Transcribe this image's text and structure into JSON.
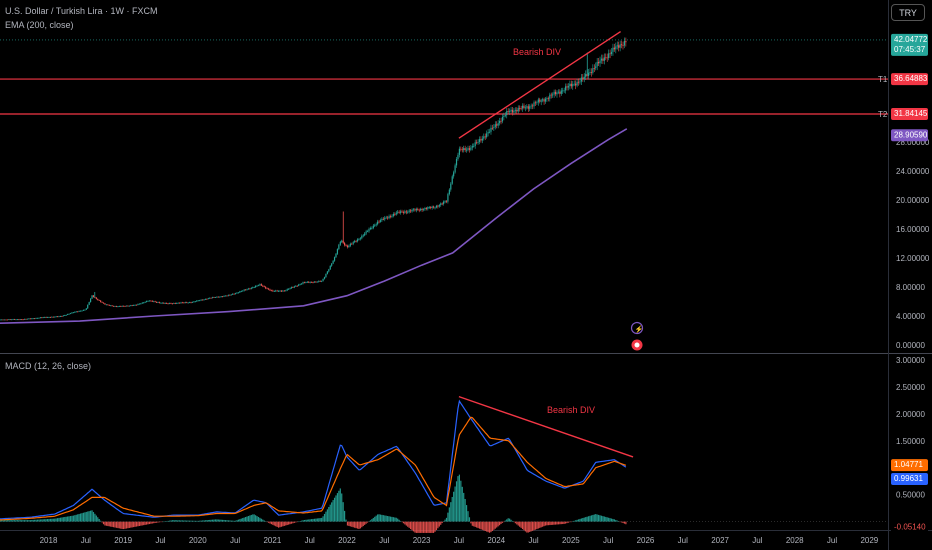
{
  "header": {
    "symbol_title": "U.S. Dollar / Turkish Lira · 1W · FXCM",
    "ema_label": "EMA (200, close)",
    "macd_label": "MACD (12, 26, close)",
    "currency_button": "TRY"
  },
  "colors": {
    "background": "#000000",
    "candle_up": "#26a69a",
    "candle_down": "#ef5350",
    "ema": "#7e57c2",
    "hline": "#f23645",
    "annotation": "#f23645",
    "macd_line": "#2962ff",
    "signal_line": "#ff6d00",
    "hist_pos": "#26a69a",
    "hist_neg": "#ef5350",
    "price_badge": "#26a69a"
  },
  "chart_data": [
    {
      "type": "candlestick",
      "title": "U.S. Dollar / Turkish Lira · 1W · FXCM",
      "y_scale": "linear",
      "ylim": [
        0,
        43
      ],
      "grid": false,
      "x_ticks": [
        "2018",
        "Jul",
        "2019",
        "Jul",
        "2020",
        "Jul",
        "2021",
        "Jul",
        "2022",
        "Jul",
        "2023",
        "Jul",
        "2024",
        "Jul",
        "2025",
        "Jul",
        "2026",
        "Jul",
        "2027",
        "Jul",
        "2028",
        "Jul",
        "2029"
      ],
      "y_ticks": [
        "0.00000",
        "4.00000",
        "8.00000",
        "12.00000",
        "16.00000",
        "20.00000",
        "24.00000",
        "28.00000"
      ],
      "price_path": [
        [
          "2017-05",
          3.5
        ],
        [
          "2017-09",
          3.55
        ],
        [
          "2017-12",
          3.8
        ],
        [
          "2018-03",
          3.95
        ],
        [
          "2018-05",
          4.5
        ],
        [
          "2018-07",
          4.9
        ],
        [
          "2018-08",
          6.8
        ],
        [
          "2018-10",
          5.6
        ],
        [
          "2018-12",
          5.3
        ],
        [
          "2019-03",
          5.5
        ],
        [
          "2019-05",
          6.1
        ],
        [
          "2019-08",
          5.7
        ],
        [
          "2019-12",
          5.9
        ],
        [
          "2020-03",
          6.5
        ],
        [
          "2020-06",
          6.85
        ],
        [
          "2020-09",
          7.7
        ],
        [
          "2020-11",
          8.3
        ],
        [
          "2021-01",
          7.4
        ],
        [
          "2021-03",
          7.5
        ],
        [
          "2021-06",
          8.6
        ],
        [
          "2021-09",
          8.8
        ],
        [
          "2021-11",
          12.0
        ],
        [
          "2021-12",
          14.5
        ],
        [
          "2022-01",
          13.5
        ],
        [
          "2022-03",
          14.7
        ],
        [
          "2022-06",
          17.0
        ],
        [
          "2022-09",
          18.2
        ],
        [
          "2022-12",
          18.6
        ],
        [
          "2023-03",
          19.0
        ],
        [
          "2023-05",
          19.8
        ],
        [
          "2023-06",
          23.5
        ],
        [
          "2023-07",
          26.8
        ],
        [
          "2023-09",
          27.2
        ],
        [
          "2023-12",
          29.5
        ],
        [
          "2024-03",
          32.2
        ],
        [
          "2024-06",
          32.8
        ],
        [
          "2024-09",
          34.0
        ],
        [
          "2024-12",
          35.3
        ],
        [
          "2025-03",
          36.7
        ],
        [
          "2025-05",
          38.5
        ],
        [
          "2025-08",
          40.8
        ],
        [
          "2025-10",
          42.0
        ]
      ],
      "ema_path": [
        [
          "2017-05",
          3.0
        ],
        [
          "2018-06",
          3.3
        ],
        [
          "2019-06",
          4.0
        ],
        [
          "2020-06",
          4.6
        ],
        [
          "2021-06",
          5.4
        ],
        [
          "2022-01",
          6.8
        ],
        [
          "2022-07",
          8.8
        ],
        [
          "2023-01",
          11.0
        ],
        [
          "2023-06",
          12.7
        ],
        [
          "2024-01",
          17.5
        ],
        [
          "2024-07",
          21.5
        ],
        [
          "2025-01",
          25.0
        ],
        [
          "2025-07",
          28.3
        ],
        [
          "2025-10",
          29.8
        ]
      ],
      "horizontal_lines": [
        {
          "label": "T1",
          "value": 36.64883,
          "value_label": "36.64883"
        },
        {
          "label": "T2",
          "value": 31.84145,
          "value_label": "31.84145"
        }
      ],
      "last_price": {
        "value": 42.04772,
        "label": "42.04772",
        "countdown": "07:45:37"
      },
      "ema_value": {
        "value": 28.9059,
        "label": "28.90590"
      },
      "annotation": {
        "text": "Bearish DIV",
        "line_from": [
          "2023-07",
          28.5
        ],
        "line_to": [
          "2025-09",
          43.2
        ]
      }
    },
    {
      "type": "line",
      "title": "MACD (12, 26, close)",
      "ylim": [
        -0.1,
        3.0
      ],
      "y_ticks": [
        "0.50000",
        "1.00000",
        "1.50000",
        "2.00000",
        "2.50000",
        "3.00000"
      ],
      "series": [
        {
          "name": "MACD",
          "points": [
            [
              "2017-05",
              0.05
            ],
            [
              "2017-10",
              0.08
            ],
            [
              "2018-02",
              0.14
            ],
            [
              "2018-05",
              0.3
            ],
            [
              "2018-08",
              0.6
            ],
            [
              "2018-10",
              0.4
            ],
            [
              "2019-01",
              0.15
            ],
            [
              "2019-06",
              0.08
            ],
            [
              "2019-09",
              0.12
            ],
            [
              "2020-01",
              0.12
            ],
            [
              "2020-04",
              0.18
            ],
            [
              "2020-07",
              0.16
            ],
            [
              "2020-10",
              0.4
            ],
            [
              "2020-12",
              0.35
            ],
            [
              "2021-02",
              0.12
            ],
            [
              "2021-06",
              0.18
            ],
            [
              "2021-09",
              0.25
            ],
            [
              "2021-12",
              1.45
            ],
            [
              "2022-01",
              1.2
            ],
            [
              "2022-03",
              0.95
            ],
            [
              "2022-06",
              1.25
            ],
            [
              "2022-09",
              1.4
            ],
            [
              "2022-12",
              0.9
            ],
            [
              "2023-03",
              0.3
            ],
            [
              "2023-05",
              0.35
            ],
            [
              "2023-07",
              2.25
            ],
            [
              "2023-09",
              1.9
            ],
            [
              "2023-12",
              1.4
            ],
            [
              "2024-03",
              1.55
            ],
            [
              "2024-06",
              0.95
            ],
            [
              "2024-09",
              0.75
            ],
            [
              "2024-12",
              0.62
            ],
            [
              "2025-03",
              0.75
            ],
            [
              "2025-05",
              1.1
            ],
            [
              "2025-08",
              1.15
            ],
            [
              "2025-10",
              1.0
            ]
          ]
        },
        {
          "name": "Signal",
          "points": [
            [
              "2017-05",
              0.03
            ],
            [
              "2017-10",
              0.06
            ],
            [
              "2018-02",
              0.1
            ],
            [
              "2018-05",
              0.22
            ],
            [
              "2018-08",
              0.45
            ],
            [
              "2018-10",
              0.45
            ],
            [
              "2019-01",
              0.25
            ],
            [
              "2019-06",
              0.1
            ],
            [
              "2019-09",
              0.1
            ],
            [
              "2020-01",
              0.11
            ],
            [
              "2020-04",
              0.15
            ],
            [
              "2020-07",
              0.15
            ],
            [
              "2020-10",
              0.3
            ],
            [
              "2020-12",
              0.35
            ],
            [
              "2021-02",
              0.2
            ],
            [
              "2021-06",
              0.16
            ],
            [
              "2021-09",
              0.2
            ],
            [
              "2021-12",
              1.0
            ],
            [
              "2022-01",
              1.25
            ],
            [
              "2022-03",
              1.05
            ],
            [
              "2022-06",
              1.15
            ],
            [
              "2022-09",
              1.35
            ],
            [
              "2022-12",
              1.05
            ],
            [
              "2023-03",
              0.45
            ],
            [
              "2023-05",
              0.3
            ],
            [
              "2023-07",
              1.6
            ],
            [
              "2023-09",
              1.95
            ],
            [
              "2023-12",
              1.55
            ],
            [
              "2024-03",
              1.5
            ],
            [
              "2024-06",
              1.1
            ],
            [
              "2024-09",
              0.8
            ],
            [
              "2024-12",
              0.65
            ],
            [
              "2025-03",
              0.7
            ],
            [
              "2025-05",
              1.0
            ],
            [
              "2025-08",
              1.12
            ],
            [
              "2025-10",
              1.04
            ]
          ]
        }
      ],
      "last_values": [
        {
          "name": "Signal",
          "label": "1.04771"
        },
        {
          "name": "MACD",
          "label": "0.99631"
        },
        {
          "name": "Histogram",
          "label": "-0.05140"
        }
      ],
      "annotation": {
        "text": "Bearish DIV",
        "line_from": [
          "2023-07",
          2.32
        ],
        "line_to": [
          "2025-11",
          1.2
        ]
      }
    }
  ]
}
